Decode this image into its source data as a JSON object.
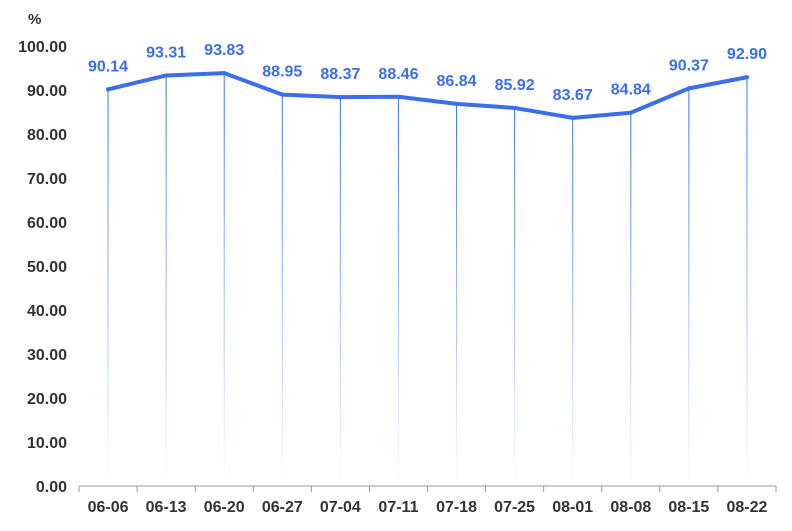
{
  "chart_data": {
    "type": "line",
    "unit_label": "%",
    "categories": [
      "06-06",
      "06-13",
      "06-20",
      "06-27",
      "07-04",
      "07-11",
      "07-18",
      "07-25",
      "08-01",
      "08-08",
      "08-15",
      "08-22"
    ],
    "series": [
      {
        "values": [
          90.14,
          93.31,
          93.83,
          88.95,
          88.37,
          88.46,
          86.84,
          85.92,
          83.67,
          84.84,
          90.37,
          92.9
        ],
        "labels": [
          "90.14",
          "93.31",
          "93.83",
          "88.95",
          "88.37",
          "88.46",
          "86.84",
          "85.92",
          "83.67",
          "84.84",
          "90.37",
          "92.90"
        ]
      }
    ],
    "ylim": [
      0,
      100
    ],
    "yticks": [
      "0.00",
      "10.00",
      "20.00",
      "30.00",
      "40.00",
      "50.00",
      "60.00",
      "70.00",
      "80.00",
      "90.00",
      "100.00"
    ],
    "grid": false,
    "drop_lines": true,
    "colors": {
      "line": "#3b6ee8",
      "label": "#3b6ee8",
      "axis": "#999999",
      "text": "#333333"
    }
  }
}
